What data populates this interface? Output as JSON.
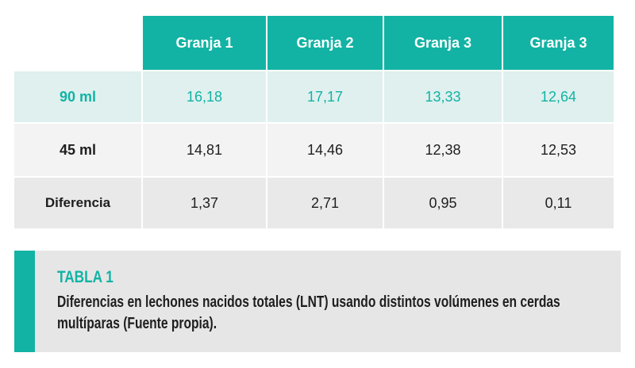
{
  "table": {
    "headers": [
      "Granja 1",
      "Granja 2",
      "Granja 3",
      "Granja 3"
    ],
    "rows": [
      {
        "label": "90 ml",
        "values": [
          "16,18",
          "17,17",
          "13,33",
          "12,64"
        ]
      },
      {
        "label": "45 ml",
        "values": [
          "14,81",
          "14,46",
          "12,38",
          "12,53"
        ]
      },
      {
        "label": "Diferencia",
        "values": [
          "1,37",
          "2,71",
          "0,95",
          "0,11"
        ]
      }
    ]
  },
  "caption": {
    "title": "TABLA 1",
    "text": "Diferencias en lechones nacidos totales (LNT) usando distintos volúmenes en cerdas multíparas (Fuente propia)."
  },
  "colors": {
    "accent": "#12b3a4",
    "highlight_row": "#dff0ee",
    "row_light": "#f3f3f3",
    "row_gray": "#e9e9e9",
    "caption_bg": "#e6e6e6"
  }
}
